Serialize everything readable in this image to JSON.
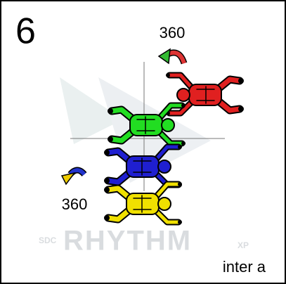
{
  "slide": {
    "number": "6",
    "annotations": [
      {
        "text": "360"
      },
      {
        "text": "360"
      }
    ],
    "footer": "inter a",
    "watermark": {
      "brand": "SDC",
      "name": "RHYTHM",
      "suffix": "XP"
    }
  }
}
